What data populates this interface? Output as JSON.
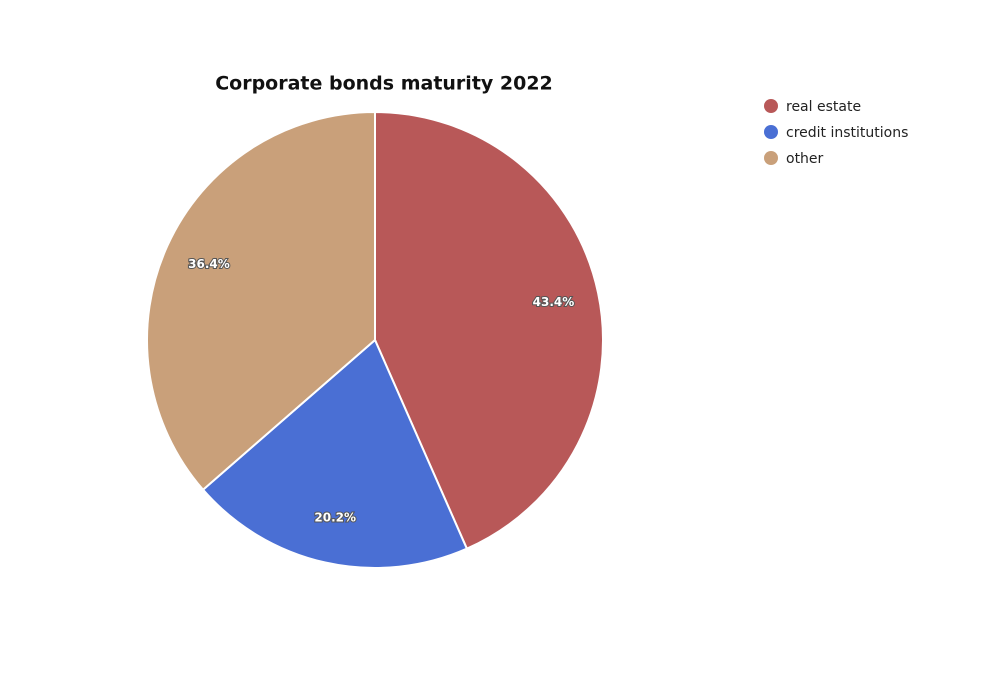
{
  "chart_data": {
    "type": "pie",
    "title": "Corporate bonds maturity 2022",
    "categories": [
      "real estate",
      "credit institutions",
      "other"
    ],
    "values": [
      43.4,
      20.2,
      36.4
    ],
    "value_labels": [
      "43.4%",
      "20.2%",
      "36.4%"
    ],
    "colors": [
      "#b85858",
      "#4a6fd4",
      "#c9a07a"
    ],
    "legend": "top-right"
  }
}
